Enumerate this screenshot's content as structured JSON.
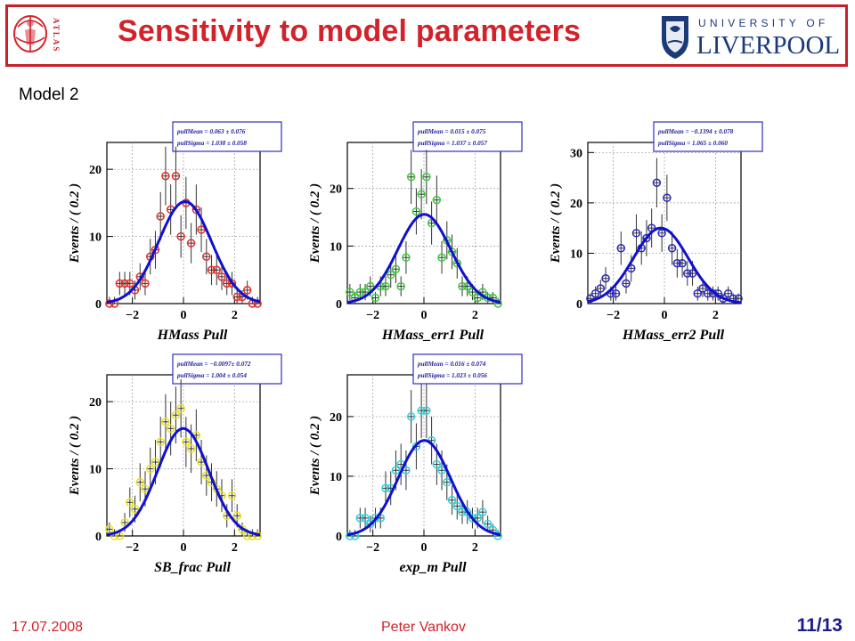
{
  "header": {
    "title": "Sensitivity to  model parameters",
    "atlas_logo_text": "ATLAS",
    "university_line1": "UNIVERSITY OF",
    "university_line2": "LIVERPOOL",
    "accent_color": "#d3222a"
  },
  "subtitle": "Model 2",
  "footer": {
    "date": "17.07.2008",
    "author": "Peter Vankov",
    "page": "11/13"
  },
  "chart_data": [
    {
      "type": "scatter",
      "title": "",
      "xlabel": "HMass Pull",
      "ylabel": "Events / ( 0.2 )",
      "xlim": [
        -3,
        3
      ],
      "ylim": [
        0,
        24
      ],
      "xticks": [
        -2,
        0,
        2
      ],
      "yticks": [
        0,
        10,
        20
      ],
      "marker_color": "#e0302a",
      "fit_color": "#1010d0",
      "fit": {
        "mean": 0.063,
        "sigma": 1.038,
        "amplitude": 15.2
      },
      "legend": [
        "pullMean =  0.063 ± 0.076",
        "pullSigma =  1.038 ± 0.058"
      ],
      "points": [
        {
          "x": -2.9,
          "y": 0
        },
        {
          "x": -2.7,
          "y": 0
        },
        {
          "x": -2.5,
          "y": 3
        },
        {
          "x": -2.3,
          "y": 3
        },
        {
          "x": -2.1,
          "y": 3
        },
        {
          "x": -1.9,
          "y": 2
        },
        {
          "x": -1.7,
          "y": 4
        },
        {
          "x": -1.5,
          "y": 3
        },
        {
          "x": -1.3,
          "y": 7
        },
        {
          "x": -1.1,
          "y": 8
        },
        {
          "x": -0.9,
          "y": 13
        },
        {
          "x": -0.7,
          "y": 19
        },
        {
          "x": -0.5,
          "y": 14
        },
        {
          "x": -0.3,
          "y": 19
        },
        {
          "x": -0.1,
          "y": 10
        },
        {
          "x": 0.1,
          "y": 15
        },
        {
          "x": 0.3,
          "y": 9
        },
        {
          "x": 0.5,
          "y": 14
        },
        {
          "x": 0.7,
          "y": 11
        },
        {
          "x": 0.9,
          "y": 7
        },
        {
          "x": 1.1,
          "y": 5
        },
        {
          "x": 1.3,
          "y": 5
        },
        {
          "x": 1.5,
          "y": 4
        },
        {
          "x": 1.7,
          "y": 3
        },
        {
          "x": 1.9,
          "y": 3
        },
        {
          "x": 2.1,
          "y": 1
        },
        {
          "x": 2.3,
          "y": 1
        },
        {
          "x": 2.5,
          "y": 2
        },
        {
          "x": 2.7,
          "y": 0
        },
        {
          "x": 2.9,
          "y": 0
        }
      ]
    },
    {
      "type": "scatter",
      "title": "",
      "xlabel": "HMass_err1 Pull",
      "ylabel": "Events / ( 0.2 )",
      "xlim": [
        -3,
        3
      ],
      "ylim": [
        0,
        28
      ],
      "xticks": [
        -2,
        0,
        2
      ],
      "yticks": [
        0,
        10,
        20
      ],
      "marker_color": "#3cc83c",
      "fit_color": "#1010d0",
      "fit": {
        "mean": 0.015,
        "sigma": 1.037,
        "amplitude": 15.5
      },
      "legend": [
        "pullMean =  0.015 ± 0.075",
        "pullSigma =  1.037 ± 0.057"
      ],
      "points": [
        {
          "x": -2.9,
          "y": 2
        },
        {
          "x": -2.7,
          "y": 1
        },
        {
          "x": -2.5,
          "y": 2
        },
        {
          "x": -2.3,
          "y": 2
        },
        {
          "x": -2.1,
          "y": 3
        },
        {
          "x": -1.9,
          "y": 1
        },
        {
          "x": -1.7,
          "y": 3
        },
        {
          "x": -1.5,
          "y": 3
        },
        {
          "x": -1.3,
          "y": 5
        },
        {
          "x": -1.1,
          "y": 6
        },
        {
          "x": -0.9,
          "y": 3
        },
        {
          "x": -0.7,
          "y": 8
        },
        {
          "x": -0.5,
          "y": 22
        },
        {
          "x": -0.3,
          "y": 16
        },
        {
          "x": -0.1,
          "y": 19
        },
        {
          "x": 0.1,
          "y": 22
        },
        {
          "x": 0.3,
          "y": 14
        },
        {
          "x": 0.5,
          "y": 18
        },
        {
          "x": 0.7,
          "y": 8
        },
        {
          "x": 0.9,
          "y": 11
        },
        {
          "x": 1.1,
          "y": 9
        },
        {
          "x": 1.3,
          "y": 7
        },
        {
          "x": 1.5,
          "y": 3
        },
        {
          "x": 1.7,
          "y": 3
        },
        {
          "x": 1.9,
          "y": 2
        },
        {
          "x": 2.1,
          "y": 1
        },
        {
          "x": 2.3,
          "y": 2
        },
        {
          "x": 2.5,
          "y": 1
        },
        {
          "x": 2.7,
          "y": 1
        },
        {
          "x": 2.9,
          "y": 0
        }
      ]
    },
    {
      "type": "scatter",
      "title": "",
      "xlabel": "HMass_err2 Pull",
      "ylabel": "Events / ( 0.2 )",
      "xlim": [
        -3,
        3
      ],
      "ylim": [
        0,
        32
      ],
      "xticks": [
        -2,
        0,
        2
      ],
      "yticks": [
        0,
        10,
        20,
        30
      ],
      "marker_color": "#2a2ab8",
      "fit_color": "#1010d0",
      "fit": {
        "mean": -0.1394,
        "sigma": 1.065,
        "amplitude": 15
      },
      "legend": [
        "pullMean = −0.1394 ± 0.078",
        "pullSigma =  1.065 ± 0.060"
      ],
      "points": [
        {
          "x": -2.9,
          "y": 1
        },
        {
          "x": -2.7,
          "y": 2
        },
        {
          "x": -2.5,
          "y": 3
        },
        {
          "x": -2.3,
          "y": 5
        },
        {
          "x": -2.1,
          "y": 2
        },
        {
          "x": -1.9,
          "y": 2
        },
        {
          "x": -1.7,
          "y": 11
        },
        {
          "x": -1.5,
          "y": 4
        },
        {
          "x": -1.3,
          "y": 7
        },
        {
          "x": -1.1,
          "y": 14
        },
        {
          "x": -0.9,
          "y": 11
        },
        {
          "x": -0.7,
          "y": 13
        },
        {
          "x": -0.5,
          "y": 15
        },
        {
          "x": -0.3,
          "y": 24
        },
        {
          "x": -0.1,
          "y": 14
        },
        {
          "x": 0.1,
          "y": 21
        },
        {
          "x": 0.3,
          "y": 11
        },
        {
          "x": 0.5,
          "y": 8
        },
        {
          "x": 0.7,
          "y": 8
        },
        {
          "x": 0.9,
          "y": 6
        },
        {
          "x": 1.1,
          "y": 6
        },
        {
          "x": 1.3,
          "y": 2
        },
        {
          "x": 1.5,
          "y": 3
        },
        {
          "x": 1.7,
          "y": 2
        },
        {
          "x": 1.9,
          "y": 2
        },
        {
          "x": 2.1,
          "y": 2
        },
        {
          "x": 2.3,
          "y": 1
        },
        {
          "x": 2.5,
          "y": 2
        },
        {
          "x": 2.7,
          "y": 1
        },
        {
          "x": 2.9,
          "y": 1
        }
      ]
    },
    {
      "type": "scatter",
      "title": "",
      "xlabel": "SB_frac Pull",
      "ylabel": "Events / ( 0.2 )",
      "xlim": [
        -3,
        3
      ],
      "ylim": [
        0,
        24
      ],
      "xticks": [
        -2,
        0,
        2
      ],
      "yticks": [
        0,
        10,
        20
      ],
      "marker_color": "#e8e020",
      "fit_color": "#1010d0",
      "fit": {
        "mean": -0.0097,
        "sigma": 1.004,
        "amplitude": 16
      },
      "legend": [
        "pullMean = −0.0097± 0.072",
        "pullSigma =  1.004 ± 0.054"
      ],
      "points": [
        {
          "x": -2.9,
          "y": 1
        },
        {
          "x": -2.7,
          "y": 0
        },
        {
          "x": -2.5,
          "y": 0
        },
        {
          "x": -2.3,
          "y": 2
        },
        {
          "x": -2.1,
          "y": 5
        },
        {
          "x": -1.9,
          "y": 4
        },
        {
          "x": -1.7,
          "y": 8
        },
        {
          "x": -1.5,
          "y": 7
        },
        {
          "x": -1.3,
          "y": 10
        },
        {
          "x": -1.1,
          "y": 11
        },
        {
          "x": -0.9,
          "y": 14
        },
        {
          "x": -0.7,
          "y": 17
        },
        {
          "x": -0.5,
          "y": 16
        },
        {
          "x": -0.3,
          "y": 18
        },
        {
          "x": -0.1,
          "y": 19
        },
        {
          "x": 0.1,
          "y": 14
        },
        {
          "x": 0.3,
          "y": 13
        },
        {
          "x": 0.5,
          "y": 15
        },
        {
          "x": 0.7,
          "y": 11
        },
        {
          "x": 0.9,
          "y": 9
        },
        {
          "x": 1.1,
          "y": 8
        },
        {
          "x": 1.3,
          "y": 7
        },
        {
          "x": 1.5,
          "y": 6
        },
        {
          "x": 1.7,
          "y": 3
        },
        {
          "x": 1.9,
          "y": 6
        },
        {
          "x": 2.1,
          "y": 3
        },
        {
          "x": 2.3,
          "y": 1
        },
        {
          "x": 2.5,
          "y": 0
        },
        {
          "x": 2.7,
          "y": 0
        },
        {
          "x": 2.9,
          "y": 0
        }
      ]
    },
    {
      "type": "scatter",
      "title": "",
      "xlabel": "exp_m Pull",
      "ylabel": "Events / ( 0.2 )",
      "xlim": [
        -3,
        3
      ],
      "ylim": [
        0,
        27
      ],
      "xticks": [
        -2,
        0,
        2
      ],
      "yticks": [
        0,
        10,
        20
      ],
      "marker_color": "#30d0d8",
      "fit_color": "#1010d0",
      "fit": {
        "mean": 0.016,
        "sigma": 1.023,
        "amplitude": 16
      },
      "legend": [
        "pullMean =  0.016 ± 0.074",
        "pullSigma =  1.023 ± 0.056"
      ],
      "points": [
        {
          "x": -2.9,
          "y": 0
        },
        {
          "x": -2.7,
          "y": 0
        },
        {
          "x": -2.5,
          "y": 3
        },
        {
          "x": -2.3,
          "y": 3
        },
        {
          "x": -2.1,
          "y": 2
        },
        {
          "x": -1.9,
          "y": 3
        },
        {
          "x": -1.7,
          "y": 3
        },
        {
          "x": -1.5,
          "y": 8
        },
        {
          "x": -1.3,
          "y": 8
        },
        {
          "x": -1.1,
          "y": 11
        },
        {
          "x": -0.9,
          "y": 12
        },
        {
          "x": -0.7,
          "y": 11
        },
        {
          "x": -0.5,
          "y": 20
        },
        {
          "x": -0.3,
          "y": 15
        },
        {
          "x": -0.1,
          "y": 21
        },
        {
          "x": 0.1,
          "y": 21
        },
        {
          "x": 0.3,
          "y": 16
        },
        {
          "x": 0.5,
          "y": 12
        },
        {
          "x": 0.7,
          "y": 11
        },
        {
          "x": 0.9,
          "y": 9
        },
        {
          "x": 1.1,
          "y": 6
        },
        {
          "x": 1.3,
          "y": 5
        },
        {
          "x": 1.5,
          "y": 4
        },
        {
          "x": 1.7,
          "y": 4
        },
        {
          "x": 1.9,
          "y": 3
        },
        {
          "x": 2.1,
          "y": 3
        },
        {
          "x": 2.3,
          "y": 4
        },
        {
          "x": 2.5,
          "y": 2
        },
        {
          "x": 2.7,
          "y": 1
        },
        {
          "x": 2.9,
          "y": 0
        }
      ]
    }
  ]
}
